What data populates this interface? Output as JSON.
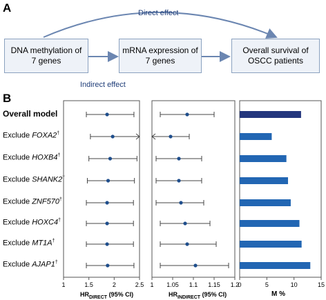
{
  "panel_a": {
    "letter": "A",
    "boxes": [
      {
        "line1": "DNA methylation of",
        "line2": "7 genes"
      },
      {
        "line1": "mRNA expression of",
        "line2": "7 genes"
      },
      {
        "line1": "Overall survival of",
        "line2": "OSCC patients"
      }
    ],
    "direct_label": "Direct effect",
    "indirect_label": "Indirect effect"
  },
  "panel_b": {
    "letter": "B",
    "rows": [
      {
        "prefix": "Overall model",
        "gene": "",
        "dagger": ""
      },
      {
        "prefix": "Exclude ",
        "gene": "FOXA2",
        "dagger": "†"
      },
      {
        "prefix": "Exclude ",
        "gene": "HOXB4",
        "dagger": "†"
      },
      {
        "prefix": "Exclude ",
        "gene": "SHANK2",
        "dagger": "†"
      },
      {
        "prefix": "Exclude ",
        "gene": "ZNF570",
        "dagger": "†"
      },
      {
        "prefix": "Exclude ",
        "gene": "HOXC4",
        "dagger": "†"
      },
      {
        "prefix": "Exclude ",
        "gene": "MT1A",
        "dagger": "†"
      },
      {
        "prefix": "Exclude ",
        "gene": "AJAP1",
        "dagger": "†"
      }
    ],
    "direct": {
      "axis_main": "HR",
      "axis_sub": "DIRECT",
      "axis_ci": " (95% CI)",
      "ticks": [
        "1",
        "1.5",
        "2",
        "2.5"
      ],
      "min": 1,
      "max": 2.5,
      "points": [
        {
          "est": 1.86,
          "lo": 1.45,
          "hi": 2.39
        },
        {
          "est": 1.97,
          "lo": 1.53,
          "hi": 2.5,
          "arrow_hi": true
        },
        {
          "est": 1.92,
          "lo": 1.5,
          "hi": 2.45
        },
        {
          "est": 1.88,
          "lo": 1.47,
          "hi": 2.4
        },
        {
          "est": 1.86,
          "lo": 1.45,
          "hi": 2.38
        },
        {
          "est": 1.86,
          "lo": 1.45,
          "hi": 2.38
        },
        {
          "est": 1.86,
          "lo": 1.45,
          "hi": 2.38
        },
        {
          "est": 1.87,
          "lo": 1.45,
          "hi": 2.39
        }
      ]
    },
    "indirect": {
      "axis_main": "HR",
      "axis_sub": "INDIRECT",
      "axis_ci": " (95% CI)",
      "ticks": [
        "1",
        "1.05",
        "1.1",
        "1.15",
        "1.2"
      ],
      "min": 1,
      "max": 1.2,
      "points": [
        {
          "est": 1.085,
          "lo": 1.02,
          "hi": 1.15
        },
        {
          "est": 1.045,
          "lo": 1.0,
          "hi": 1.09,
          "arrow_lo": true
        },
        {
          "est": 1.065,
          "lo": 1.01,
          "hi": 1.12
        },
        {
          "est": 1.065,
          "lo": 1.01,
          "hi": 1.12
        },
        {
          "est": 1.07,
          "lo": 1.01,
          "hi": 1.125
        },
        {
          "est": 1.08,
          "lo": 1.02,
          "hi": 1.14
        },
        {
          "est": 1.085,
          "lo": 1.02,
          "hi": 1.155
        },
        {
          "est": 1.105,
          "lo": 1.02,
          "hi": 1.185
        }
      ]
    },
    "mediation": {
      "axis_label": "M %",
      "ticks": [
        "0",
        "5",
        "10",
        "15"
      ],
      "min": 0,
      "max": 15,
      "values": [
        11.3,
        5.9,
        8.6,
        8.9,
        9.4,
        11.0,
        11.4,
        13.0
      ],
      "first_color": "#23367d",
      "bar_color": "#2266b3"
    }
  }
}
